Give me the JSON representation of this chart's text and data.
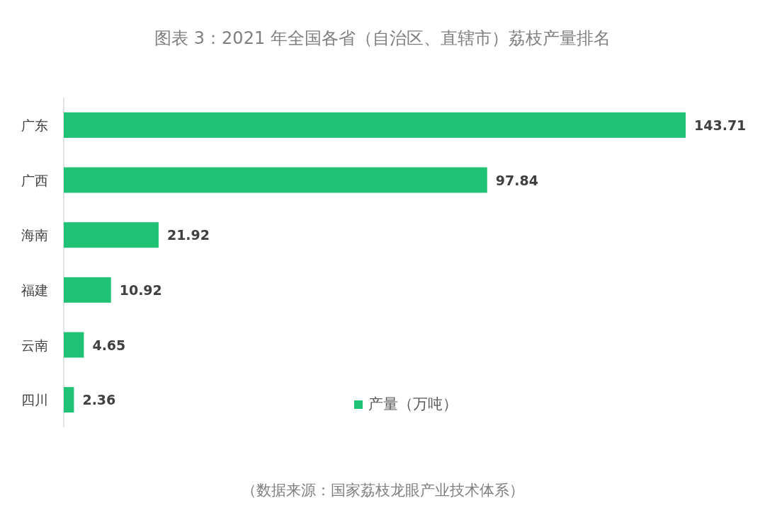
{
  "chart_data": {
    "type": "bar",
    "orientation": "horizontal",
    "title": "图表 3：2021 年全国各省（自治区、直辖市）荔枝产量排名",
    "categories": [
      "广东",
      "广西",
      "海南",
      "福建",
      "云南",
      "四川"
    ],
    "series": [
      {
        "name": "产量（万吨）",
        "color": "#1fc274",
        "values": [
          143.71,
          97.84,
          21.92,
          10.92,
          4.65,
          2.36
        ]
      }
    ],
    "data_labels": true,
    "legend": "bottom",
    "annotations": [
      "（数据来源：国家荔枝龙眼产业技术体系）"
    ]
  }
}
